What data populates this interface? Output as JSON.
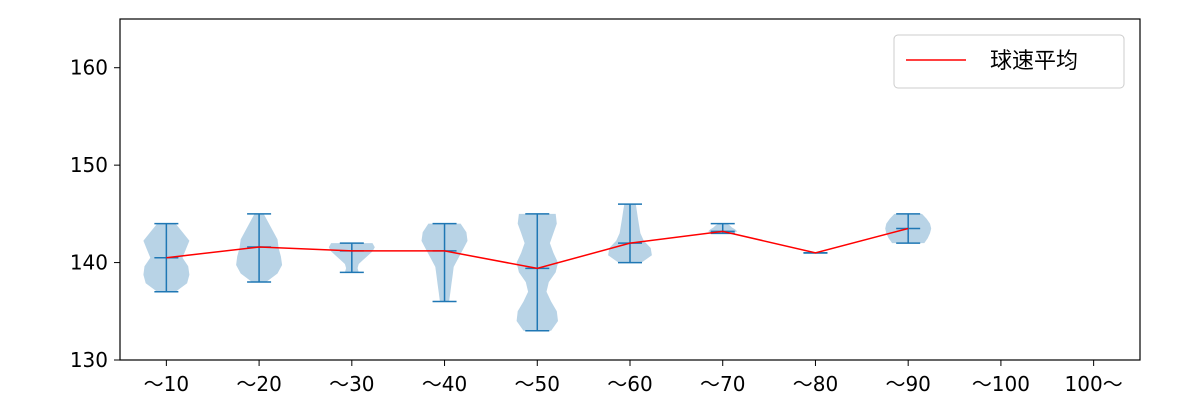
{
  "chart_data": {
    "type": "violin",
    "categories": [
      "～10",
      "～20",
      "～30",
      "～40",
      "～50",
      "～60",
      "～70",
      "～80",
      "～90",
      "～100",
      "100～"
    ],
    "ylim": [
      130,
      165
    ],
    "yticks": [
      130,
      140,
      150,
      160
    ],
    "mean_series": {
      "name": "球速平均",
      "color": "#ff0000",
      "values": [
        140.5,
        141.6,
        141.2,
        141.2,
        139.4,
        142.0,
        143.2,
        141.0,
        143.5,
        null,
        null
      ]
    },
    "distributions": [
      {
        "category": "～10",
        "min": 137,
        "max": 144,
        "mean": 140.5
      },
      {
        "category": "～20",
        "min": 138,
        "max": 145,
        "mean": 141.6
      },
      {
        "category": "～30",
        "min": 139,
        "max": 142,
        "mean": 141.2
      },
      {
        "category": "～40",
        "min": 136,
        "max": 144,
        "mean": 141.2
      },
      {
        "category": "～50",
        "min": 133,
        "max": 145,
        "mean": 139.4
      },
      {
        "category": "～60",
        "min": 140,
        "max": 146,
        "mean": 142.0
      },
      {
        "category": "～70",
        "min": 143,
        "max": 144,
        "mean": 143.2
      },
      {
        "category": "～80",
        "min": 141,
        "max": 141,
        "mean": 141.0
      },
      {
        "category": "～90",
        "min": 142,
        "max": 145,
        "mean": 143.5
      },
      {
        "category": "～100",
        "min": null,
        "max": null,
        "mean": null
      },
      {
        "category": "100～",
        "min": null,
        "max": null,
        "mean": null
      }
    ],
    "legend": {
      "position": "top-right"
    },
    "grid": false,
    "colors": {
      "violin_fill": "#b8d3e6",
      "whisker": "#1f77b4",
      "mean_line": "#ff0000"
    }
  }
}
